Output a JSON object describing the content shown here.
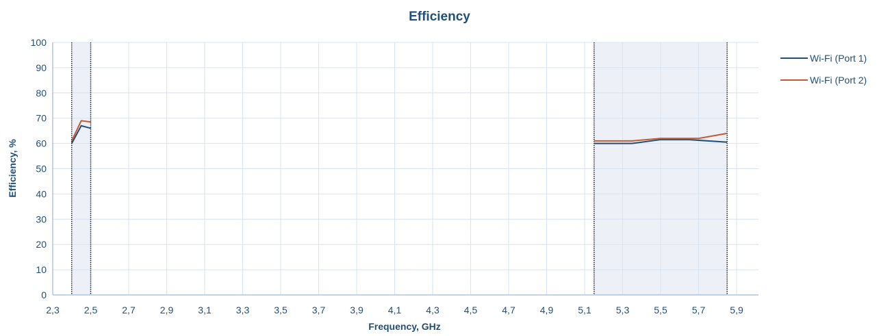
{
  "chart_data": {
    "type": "line",
    "title": "Efficiency",
    "xlabel": "Frequency, GHz",
    "ylabel": "Efficiency, %",
    "xlim": [
      2.3,
      5.95
    ],
    "ylim": [
      0,
      100
    ],
    "x_ticks": [
      "2,3",
      "2,5",
      "2,7",
      "2,9",
      "3,1",
      "3,3",
      "3,5",
      "3,7",
      "3,9",
      "4,1",
      "4,3",
      "4,5",
      "4,7",
      "4,9",
      "5,1",
      "5,3",
      "5,5",
      "5,7",
      "5,9"
    ],
    "y_ticks": [
      "0",
      "10",
      "20",
      "30",
      "40",
      "50",
      "60",
      "70",
      "80",
      "90",
      "100"
    ],
    "grid": true,
    "legend_position": "top-right",
    "bands": [
      {
        "start": 2.4,
        "end": 2.5
      },
      {
        "start": 5.15,
        "end": 5.85
      }
    ],
    "series": [
      {
        "name": "Wi-Fi (Port 1)",
        "color": "#1f4e79",
        "segments": [
          [
            [
              2.4,
              60
            ],
            [
              2.45,
              67
            ],
            [
              2.5,
              66
            ]
          ],
          [
            [
              5.15,
              60
            ],
            [
              5.35,
              60
            ],
            [
              5.5,
              61.5
            ],
            [
              5.65,
              61.5
            ],
            [
              5.85,
              60.5
            ]
          ]
        ]
      },
      {
        "name": "Wi-Fi (Port 2)",
        "color": "#c55a32",
        "segments": [
          [
            [
              2.4,
              61
            ],
            [
              2.45,
              69
            ],
            [
              2.5,
              68.5
            ]
          ],
          [
            [
              5.15,
              61
            ],
            [
              5.35,
              61
            ],
            [
              5.5,
              62
            ],
            [
              5.7,
              62
            ],
            [
              5.85,
              64
            ]
          ]
        ]
      }
    ]
  }
}
